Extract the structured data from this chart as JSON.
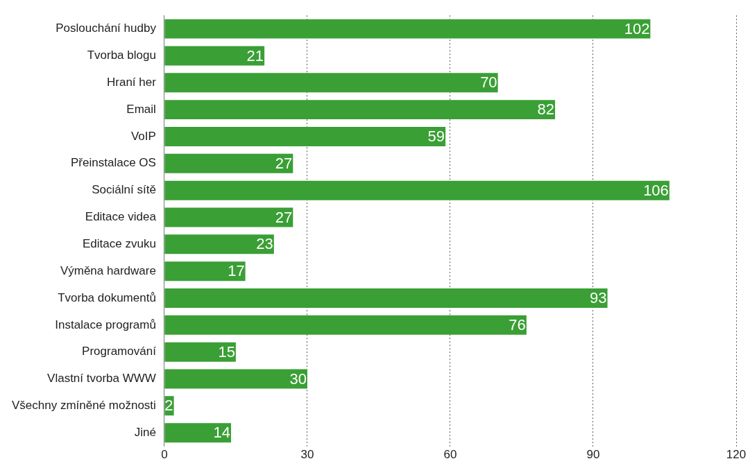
{
  "chart_data": {
    "type": "bar",
    "orientation": "horizontal",
    "categories": [
      "Poslouchání hudby",
      "Tvorba blogu",
      "Hraní her",
      "Email",
      "VoIP",
      "Přeinstalace OS",
      "Sociální sítě",
      "Editace videa",
      "Editace zvuku",
      "Výměna hardware",
      "Tvorba dokumentů",
      "Instalace programů",
      "Programování",
      "Vlastní tvorba WWW",
      "Všechny zmíněné možnosti",
      "Jiné"
    ],
    "values": [
      102,
      21,
      70,
      82,
      59,
      27,
      106,
      27,
      23,
      17,
      93,
      76,
      15,
      30,
      2,
      14
    ],
    "color": "#3a9f35",
    "xlim": [
      0,
      120
    ],
    "xticks": [
      0,
      30,
      60,
      90,
      120
    ],
    "grid": "x",
    "legend": false,
    "data_labels": true
  }
}
